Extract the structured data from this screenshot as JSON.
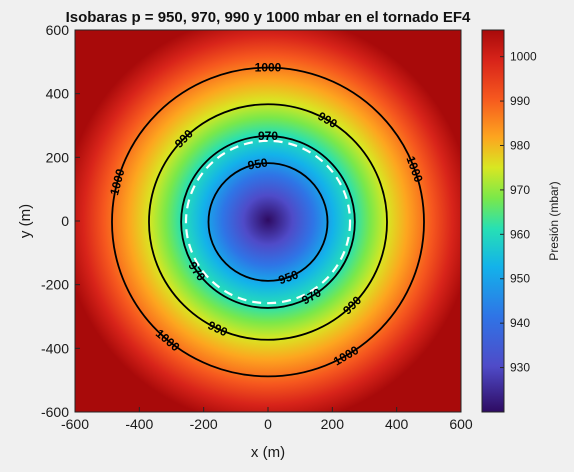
{
  "chart_data": {
    "type": "contour",
    "title": "Isobaras p = 950, 970, 990 y 1000 mbar en el tornado EF4",
    "xlabel": "x (m)",
    "ylabel": "y (m)",
    "xlim": [
      -600,
      600
    ],
    "ylim": [
      -600,
      600
    ],
    "xticks": [
      "-600",
      "-400",
      "-200",
      "0",
      "200",
      "400",
      "600"
    ],
    "yticks": [
      "600",
      "400",
      "200",
      "0",
      "-200",
      "-400",
      "-600"
    ],
    "colorbar": {
      "label": "Presión (mbar)",
      "range": [
        920,
        1006
      ],
      "ticks": [
        "1000",
        "990",
        "980",
        "970",
        "960",
        "950",
        "940",
        "930"
      ],
      "colormap": "jet-like (purple → blue → cyan → green → yellow → orange → red → dark red)"
    },
    "pressure_field": {
      "center": [
        0,
        0
      ],
      "min_pressure": 920,
      "max_pressure": 1006,
      "description": "radially increasing pressure around the vortex center"
    },
    "contours": [
      {
        "level": 950,
        "radius": 185,
        "style": "solid",
        "color": "#000000",
        "labels": [
          "950",
          "950"
        ]
      },
      {
        "level": 960,
        "radius": 255,
        "style": "dashed",
        "color": "#ffffff",
        "labels": []
      },
      {
        "level": 970,
        "radius": 270,
        "style": "solid",
        "color": "#000000",
        "labels": [
          "970",
          "970",
          "970"
        ]
      },
      {
        "level": 990,
        "radius": 370,
        "style": "solid",
        "color": "#000000",
        "labels": [
          "990",
          "990",
          "990",
          "990"
        ]
      },
      {
        "level": 1000,
        "radius": 485,
        "style": "solid",
        "color": "#000000",
        "labels": [
          "1000",
          "1000",
          "1000",
          "1000",
          "1000"
        ]
      }
    ],
    "grid": false,
    "legend": "none"
  }
}
